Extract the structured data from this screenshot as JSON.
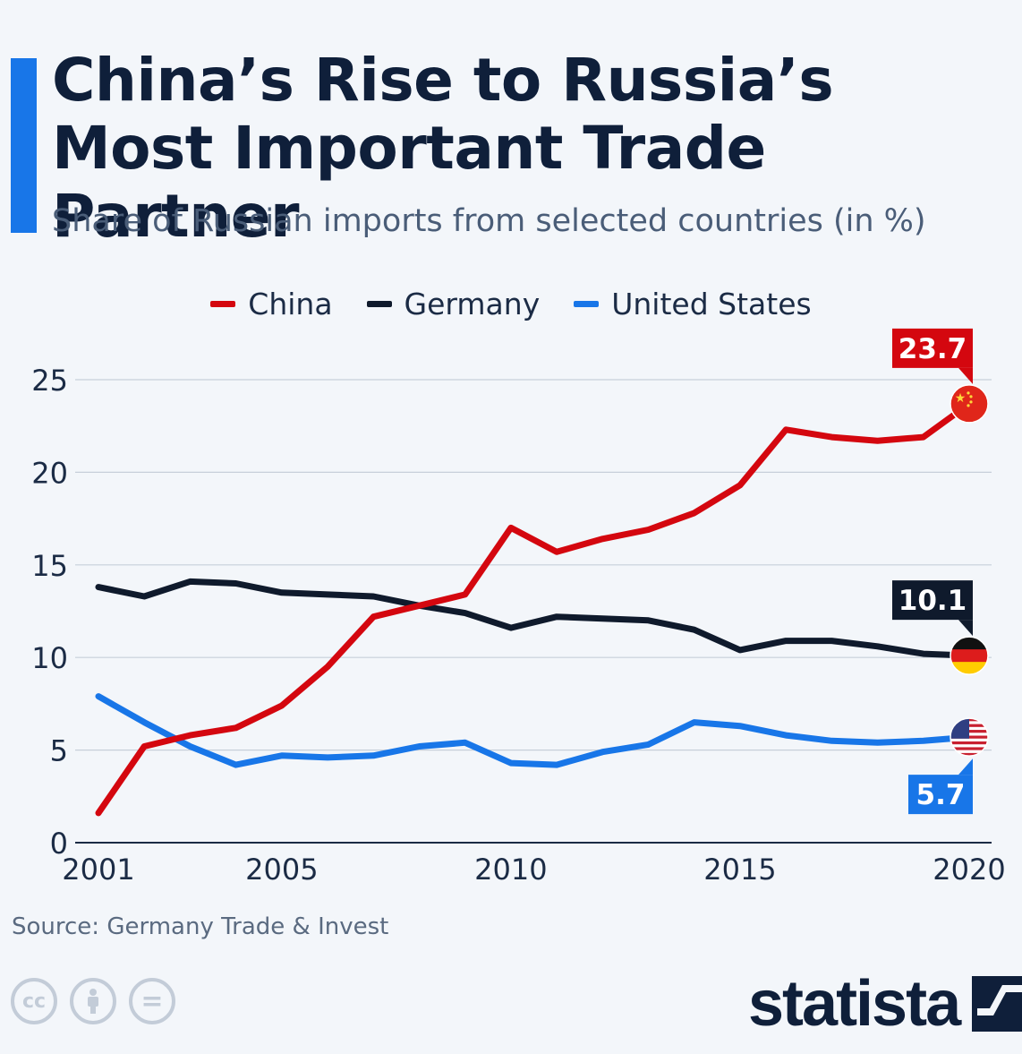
{
  "header": {
    "title": "China’s Rise to Russia’s Most Important Trade Partner",
    "subtitle": "Share of Russian imports from selected countries (in %)"
  },
  "colors": {
    "accent": "#1876e8",
    "china": "#d4070f",
    "germany": "#0f1a2c",
    "us": "#1876e8"
  },
  "chart_data": {
    "type": "line",
    "x": [
      2001,
      2002,
      2003,
      2004,
      2005,
      2006,
      2007,
      2008,
      2009,
      2010,
      2011,
      2012,
      2013,
      2014,
      2015,
      2016,
      2017,
      2018,
      2019,
      2020
    ],
    "x_tick_labels": [
      "2001",
      "2005",
      "2010",
      "2015",
      "2020"
    ],
    "y_ticks": [
      "0",
      "5",
      "10",
      "15",
      "20",
      "25"
    ],
    "ylim": [
      0,
      25
    ],
    "grid": true,
    "legend_position": "top-center",
    "series": [
      {
        "name": "China",
        "color": "#d4070f",
        "end_label": "23.7",
        "end_icon": "china-flag-icon",
        "values": [
          1.6,
          5.2,
          5.8,
          6.2,
          7.4,
          9.5,
          12.2,
          12.8,
          13.4,
          17.0,
          15.7,
          16.4,
          16.9,
          17.8,
          19.3,
          22.3,
          21.9,
          21.7,
          21.9,
          23.7
        ]
      },
      {
        "name": "Germany",
        "color": "#0f1a2c",
        "end_label": "10.1",
        "end_icon": "germany-flag-icon",
        "values": [
          13.8,
          13.3,
          14.1,
          14.0,
          13.5,
          13.4,
          13.3,
          12.8,
          12.4,
          11.6,
          12.2,
          12.1,
          12.0,
          11.5,
          10.4,
          10.9,
          10.9,
          10.6,
          10.2,
          10.1
        ]
      },
      {
        "name": "United States",
        "color": "#1876e8",
        "end_label": "5.7",
        "end_icon": "us-flag-icon",
        "values": [
          7.9,
          6.5,
          5.2,
          4.2,
          4.7,
          4.6,
          4.7,
          5.2,
          5.4,
          4.3,
          4.2,
          4.9,
          5.3,
          6.5,
          6.3,
          5.8,
          5.5,
          5.4,
          5.5,
          5.7
        ]
      }
    ]
  },
  "footer": {
    "source": "Source: Germany Trade & Invest",
    "brand": "statista",
    "cc_icons": [
      "creative-commons-icon",
      "attribution-icon",
      "no-derivatives-icon"
    ],
    "cc_glyphs": [
      "cc",
      "",
      "="
    ]
  }
}
